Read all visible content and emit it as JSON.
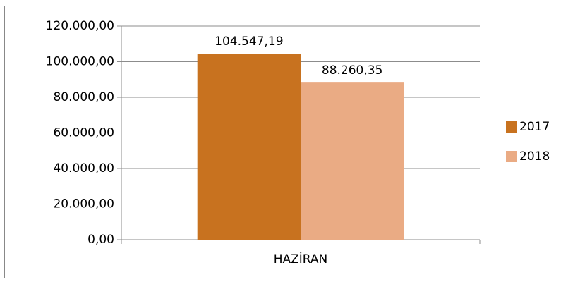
{
  "chart_data": {
    "type": "bar",
    "categories": [
      "HAZİRAN"
    ],
    "series": [
      {
        "name": "2017",
        "color": "#c8721f",
        "values": [
          104547.19
        ],
        "value_labels": [
          "104.547,19"
        ]
      },
      {
        "name": "2018",
        "color": "#eaab84",
        "values": [
          88260.35
        ],
        "value_labels": [
          "88.260,35"
        ]
      }
    ],
    "ylim": [
      0,
      120000
    ],
    "yticks": [
      {
        "value": 0,
        "label": "0,00"
      },
      {
        "value": 20000,
        "label": "20.000,00"
      },
      {
        "value": 40000,
        "label": "40.000,00"
      },
      {
        "value": 60000,
        "label": "60.000,00"
      },
      {
        "value": 80000,
        "label": "80.000,00"
      },
      {
        "value": 100000,
        "label": "100.000,00"
      },
      {
        "value": 120000,
        "label": "120.000,00"
      }
    ],
    "grid": true,
    "legend": "right"
  }
}
